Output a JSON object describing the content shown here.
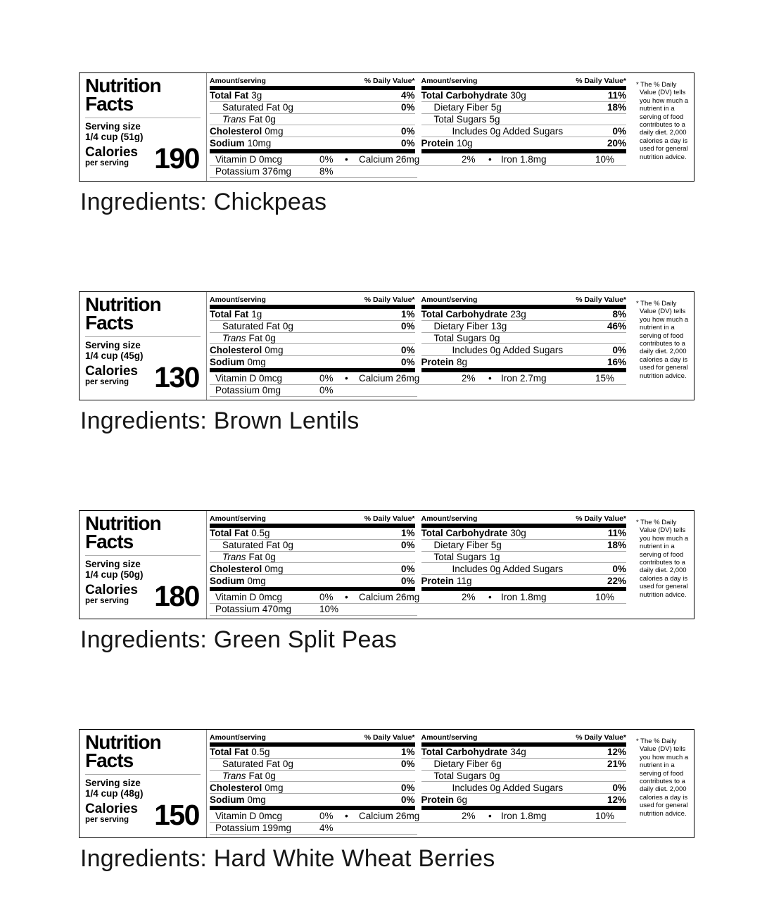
{
  "colors": {
    "text": "#000000",
    "background": "#ffffff",
    "separator": "#ababab",
    "bar": "#000000",
    "border": "#000000"
  },
  "shared": {
    "title_line1": "Nutrition",
    "title_line2": "Facts",
    "serving_size_label": "Serving size",
    "calories_label": "Calories",
    "per_serving_label": "per serving",
    "amount_serving_label": "Amount/serving",
    "daily_value_label": "% Daily Value*",
    "bullet": "•",
    "footnote": "* The % Daily Value (DV) tells you how much a nutrient in a serving of food contributes to a daily diet. 2,000 calories a day is used for general nutrition advice."
  },
  "panels": [
    {
      "ingredients": "Ingredients: Chickpeas",
      "serving_size": "1/4 cup (51g)",
      "calories": "190",
      "col1": [
        {
          "label": "Total Fat",
          "value": "3g",
          "dv": "4%",
          "bold": true
        },
        {
          "label": "Saturated Fat",
          "value": "0g",
          "dv": "0%",
          "indent": 1
        },
        {
          "label": "Trans",
          "value": "Fat 0g",
          "dv": "",
          "indent": 1,
          "italic": true
        },
        {
          "label": "Cholesterol",
          "value": "0mg",
          "dv": "0%",
          "bold": true
        },
        {
          "label": "Sodium",
          "value": "10mg",
          "dv": "0%",
          "bold": true
        }
      ],
      "col2": [
        {
          "label": "Total Carbohydrate",
          "value": "30g",
          "dv": "11%",
          "bold": true
        },
        {
          "label": "Dietary Fiber",
          "value": "5g",
          "dv": "18%",
          "indent": 1
        },
        {
          "label": "Total Sugars",
          "value": "5g",
          "dv": "",
          "indent": 1
        },
        {
          "label": "Includes 0g Added Sugars",
          "value": "",
          "dv": "0%",
          "indent": 2
        },
        {
          "label": "Protein",
          "value": "10g",
          "dv": "20%",
          "bold": true
        }
      ],
      "micros": {
        "vitamin_d": "Vitamin D 0mcg",
        "vitamin_d_dv": "0%",
        "calcium": "Calcium 26mg",
        "calcium_dv": "2%",
        "iron": "Iron 1.8mg",
        "iron_dv": "10%",
        "potassium": "Potassium 376mg",
        "potassium_dv": "8%"
      }
    },
    {
      "ingredients": "Ingredients: Brown Lentils",
      "serving_size": "1/4 cup (45g)",
      "calories": "130",
      "col1": [
        {
          "label": "Total Fat",
          "value": "1g",
          "dv": "1%",
          "bold": true
        },
        {
          "label": "Saturated Fat",
          "value": "0g",
          "dv": "0%",
          "indent": 1
        },
        {
          "label": "Trans",
          "value": "Fat 0g",
          "dv": "",
          "indent": 1,
          "italic": true
        },
        {
          "label": "Cholesterol",
          "value": "0mg",
          "dv": "0%",
          "bold": true
        },
        {
          "label": "Sodium",
          "value": "0mg",
          "dv": "0%",
          "bold": true
        }
      ],
      "col2": [
        {
          "label": "Total Carbohydrate",
          "value": "23g",
          "dv": "8%",
          "bold": true
        },
        {
          "label": "Dietary Fiber",
          "value": "13g",
          "dv": "46%",
          "indent": 1
        },
        {
          "label": "Total Sugars",
          "value": "0g",
          "dv": "",
          "indent": 1
        },
        {
          "label": "Includes 0g Added Sugars",
          "value": "",
          "dv": "0%",
          "indent": 2
        },
        {
          "label": "Protein",
          "value": "8g",
          "dv": "16%",
          "bold": true
        }
      ],
      "micros": {
        "vitamin_d": "Vitamin D 0mcg",
        "vitamin_d_dv": "0%",
        "calcium": "Calcium 26mg",
        "calcium_dv": "2%",
        "iron": "Iron 2.7mg",
        "iron_dv": "15%",
        "potassium": "Potassium 0mg",
        "potassium_dv": "0%"
      }
    },
    {
      "ingredients": "Ingredients: Green Split Peas",
      "serving_size": "1/4 cup (50g)",
      "calories": "180",
      "col1": [
        {
          "label": "Total Fat",
          "value": "0.5g",
          "dv": "1%",
          "bold": true
        },
        {
          "label": "Saturated Fat",
          "value": "0g",
          "dv": "0%",
          "indent": 1
        },
        {
          "label": "Trans",
          "value": "Fat 0g",
          "dv": "",
          "indent": 1,
          "italic": true
        },
        {
          "label": "Cholesterol",
          "value": "0mg",
          "dv": "0%",
          "bold": true
        },
        {
          "label": "Sodium",
          "value": "0mg",
          "dv": "0%",
          "bold": true
        }
      ],
      "col2": [
        {
          "label": "Total Carbohydrate",
          "value": "30g",
          "dv": "11%",
          "bold": true
        },
        {
          "label": "Dietary Fiber",
          "value": "5g",
          "dv": "18%",
          "indent": 1
        },
        {
          "label": "Total Sugars",
          "value": "1g",
          "dv": "",
          "indent": 1
        },
        {
          "label": "Includes 0g Added Sugars",
          "value": "",
          "dv": "0%",
          "indent": 2
        },
        {
          "label": "Protein",
          "value": "11g",
          "dv": "22%",
          "bold": true
        }
      ],
      "micros": {
        "vitamin_d": "Vitamin D 0mcg",
        "vitamin_d_dv": "0%",
        "calcium": "Calcium 26mg",
        "calcium_dv": "2%",
        "iron": "Iron 1.8mg",
        "iron_dv": "10%",
        "potassium": "Potassium 470mg",
        "potassium_dv": "10%"
      }
    },
    {
      "ingredients": "Ingredients: Hard White Wheat Berries",
      "serving_size": "1/4 cup (48g)",
      "calories": "150",
      "col1": [
        {
          "label": "Total Fat",
          "value": "0.5g",
          "dv": "1%",
          "bold": true
        },
        {
          "label": "Saturated Fat",
          "value": "0g",
          "dv": "0%",
          "indent": 1
        },
        {
          "label": "Trans",
          "value": "Fat 0g",
          "dv": "",
          "indent": 1,
          "italic": true
        },
        {
          "label": "Cholesterol",
          "value": "0mg",
          "dv": "0%",
          "bold": true
        },
        {
          "label": "Sodium",
          "value": "0mg",
          "dv": "0%",
          "bold": true
        }
      ],
      "col2": [
        {
          "label": "Total Carbohydrate",
          "value": "34g",
          "dv": "12%",
          "bold": true
        },
        {
          "label": "Dietary Fiber",
          "value": "6g",
          "dv": "21%",
          "indent": 1
        },
        {
          "label": "Total Sugars",
          "value": "0g",
          "dv": "",
          "indent": 1
        },
        {
          "label": "Includes 0g Added Sugars",
          "value": "",
          "dv": "0%",
          "indent": 2
        },
        {
          "label": "Protein",
          "value": "6g",
          "dv": "12%",
          "bold": true
        }
      ],
      "micros": {
        "vitamin_d": "Vitamin D 0mcg",
        "vitamin_d_dv": "0%",
        "calcium": "Calcium 26mg",
        "calcium_dv": "2%",
        "iron": "Iron 1.8mg",
        "iron_dv": "10%",
        "potassium": "Potassium 199mg",
        "potassium_dv": "4%"
      }
    }
  ]
}
